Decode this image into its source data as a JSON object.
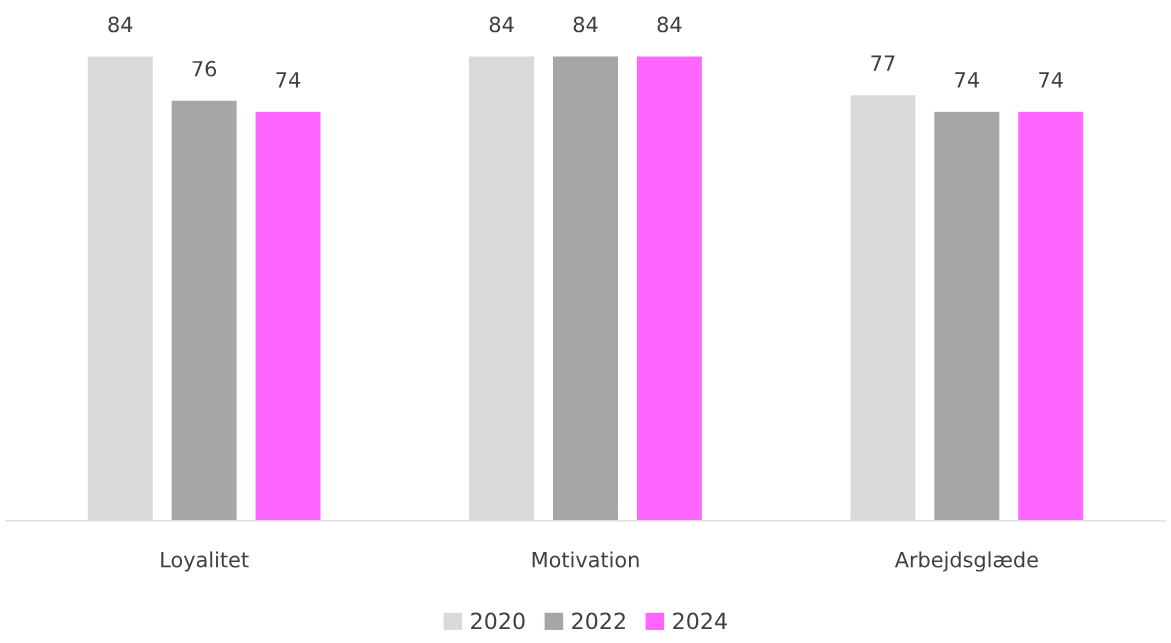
{
  "chart_data": {
    "type": "bar",
    "categories": [
      "Loyalitet",
      "Motivation",
      "Arbejdsglæde"
    ],
    "series": [
      {
        "name": "2020",
        "color": "#d9d9d9",
        "values": [
          84,
          84,
          77
        ]
      },
      {
        "name": "2022",
        "color": "#a6a6a6",
        "values": [
          76,
          84,
          74
        ]
      },
      {
        "name": "2024",
        "color": "#ff66ff",
        "values": [
          74,
          84,
          74
        ]
      }
    ],
    "data_labels": true,
    "legend": "bottom",
    "grid": false
  }
}
